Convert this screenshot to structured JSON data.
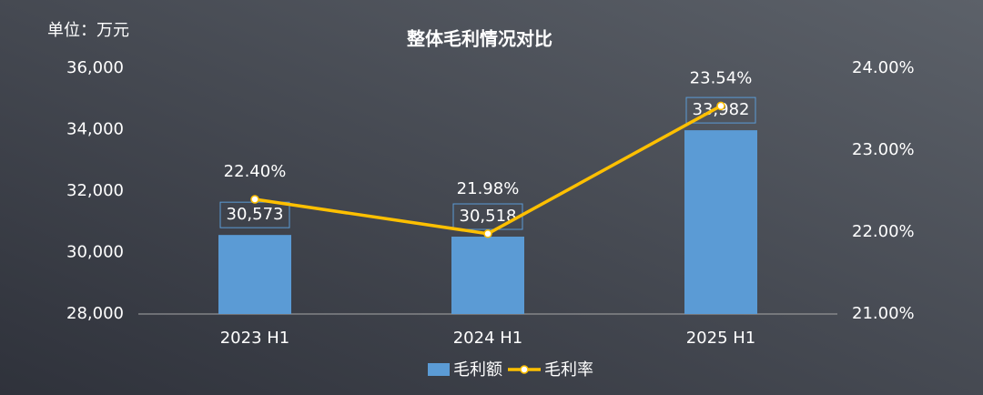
{
  "chart_data": {
    "type": "bar",
    "title": "整体毛利情况对比",
    "unit_label": "单位：万元",
    "categories": [
      "2023 H1",
      "2024 H1",
      "2025 H1"
    ],
    "series": [
      {
        "name": "毛利额",
        "type": "bar",
        "color": "#5b9bd5",
        "values": [
          30573,
          30518,
          33982
        ],
        "value_labels": [
          "30,573",
          "30,518",
          "33,982"
        ]
      },
      {
        "name": "毛利率",
        "type": "line",
        "axis": "y2",
        "color": "#ffc000",
        "values": [
          22.4,
          21.98,
          23.54
        ],
        "value_labels": [
          "22.40%",
          "21.98%",
          "23.54%"
        ]
      }
    ],
    "ylim": [
      28000,
      36000
    ],
    "yticks": [
      {
        "value": 28000,
        "label": "28,000"
      },
      {
        "value": 30000,
        "label": "30,000"
      },
      {
        "value": 32000,
        "label": "32,000"
      },
      {
        "value": 34000,
        "label": "34,000"
      },
      {
        "value": 36000,
        "label": "36,000"
      }
    ],
    "y2lim": [
      21,
      24
    ],
    "y2ticks": [
      {
        "value": 21,
        "label": "21.00%"
      },
      {
        "value": 22,
        "label": "22.00%"
      },
      {
        "value": 23,
        "label": "23.00%"
      },
      {
        "value": 24,
        "label": "24.00%"
      }
    ],
    "grid": false,
    "legend": "bottom"
  }
}
